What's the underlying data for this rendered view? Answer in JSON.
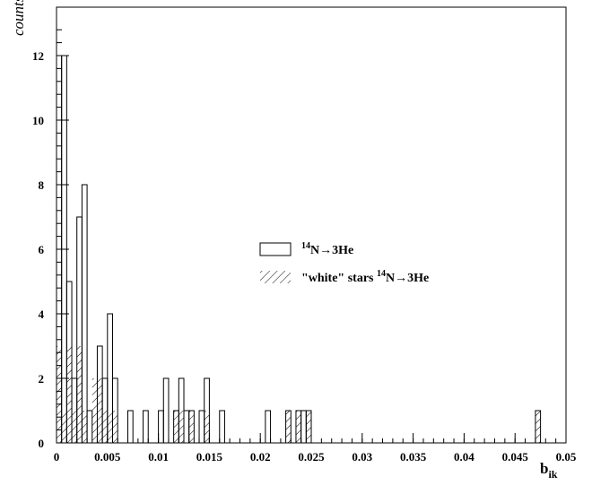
{
  "chart_data": {
    "type": "histogram",
    "xlabel": "b",
    "xlabel_sub": "ik",
    "ylabel": "counts",
    "xlim": [
      0,
      0.05
    ],
    "ylim": [
      0,
      13.5
    ],
    "bin_width": 0.0005,
    "x_ticks": [
      {
        "value": 0,
        "label": "0"
      },
      {
        "value": 0.005,
        "label": "0.005"
      },
      {
        "value": 0.01,
        "label": "0.01"
      },
      {
        "value": 0.015,
        "label": "0.015"
      },
      {
        "value": 0.02,
        "label": "0.02"
      },
      {
        "value": 0.025,
        "label": "0.025"
      },
      {
        "value": 0.03,
        "label": "0.03"
      },
      {
        "value": 0.035,
        "label": "0.035"
      },
      {
        "value": 0.04,
        "label": "0.04"
      },
      {
        "value": 0.045,
        "label": "0.045"
      },
      {
        "value": 0.05,
        "label": "0.05"
      }
    ],
    "y_ticks": [
      {
        "value": 0,
        "label": "0"
      },
      {
        "value": 2,
        "label": "2"
      },
      {
        "value": 4,
        "label": "4"
      },
      {
        "value": 6,
        "label": "6"
      },
      {
        "value": 8,
        "label": "8"
      },
      {
        "value": 10,
        "label": "10"
      },
      {
        "value": 12,
        "label": "12"
      }
    ],
    "grid": false,
    "legend_position": "center-right",
    "series": [
      {
        "name_pre": "",
        "name_sup": "14",
        "name_post": "N→3He",
        "style": "open",
        "bins": [
          {
            "x": 0.0,
            "count": 12
          },
          {
            "x": 0.0005,
            "count": 12
          },
          {
            "x": 0.001,
            "count": 5
          },
          {
            "x": 0.0015,
            "count": 2
          },
          {
            "x": 0.002,
            "count": 7
          },
          {
            "x": 0.0025,
            "count": 8
          },
          {
            "x": 0.003,
            "count": 1
          },
          {
            "x": 0.0035,
            "count": 0
          },
          {
            "x": 0.004,
            "count": 3
          },
          {
            "x": 0.0045,
            "count": 2
          },
          {
            "x": 0.005,
            "count": 4
          },
          {
            "x": 0.0055,
            "count": 2
          },
          {
            "x": 0.006,
            "count": 0
          },
          {
            "x": 0.0065,
            "count": 0
          },
          {
            "x": 0.007,
            "count": 1
          },
          {
            "x": 0.0075,
            "count": 0
          },
          {
            "x": 0.008,
            "count": 0
          },
          {
            "x": 0.0085,
            "count": 1
          },
          {
            "x": 0.009,
            "count": 0
          },
          {
            "x": 0.0095,
            "count": 0
          },
          {
            "x": 0.01,
            "count": 1
          },
          {
            "x": 0.0105,
            "count": 2
          },
          {
            "x": 0.011,
            "count": 0
          },
          {
            "x": 0.0115,
            "count": 1
          },
          {
            "x": 0.012,
            "count": 2
          },
          {
            "x": 0.0125,
            "count": 1
          },
          {
            "x": 0.013,
            "count": 1
          },
          {
            "x": 0.0135,
            "count": 0
          },
          {
            "x": 0.014,
            "count": 1
          },
          {
            "x": 0.0145,
            "count": 2
          },
          {
            "x": 0.015,
            "count": 0
          },
          {
            "x": 0.0155,
            "count": 0
          },
          {
            "x": 0.016,
            "count": 1
          },
          {
            "x": 0.0205,
            "count": 1
          },
          {
            "x": 0.0225,
            "count": 1
          },
          {
            "x": 0.023,
            "count": 0
          },
          {
            "x": 0.0235,
            "count": 1
          },
          {
            "x": 0.024,
            "count": 1
          },
          {
            "x": 0.0245,
            "count": 1
          },
          {
            "x": 0.047,
            "count": 1
          }
        ]
      },
      {
        "name_pre": "\"white\" stars ",
        "name_sup": "14",
        "name_post": "N→3He",
        "style": "hatched",
        "bins": [
          {
            "x": 0.0,
            "count": 3
          },
          {
            "x": 0.0005,
            "count": 1
          },
          {
            "x": 0.001,
            "count": 3
          },
          {
            "x": 0.0015,
            "count": 1
          },
          {
            "x": 0.002,
            "count": 3
          },
          {
            "x": 0.0025,
            "count": 1
          },
          {
            "x": 0.003,
            "count": 0
          },
          {
            "x": 0.0035,
            "count": 2
          },
          {
            "x": 0.004,
            "count": 2
          },
          {
            "x": 0.0045,
            "count": 1
          },
          {
            "x": 0.005,
            "count": 1
          },
          {
            "x": 0.0055,
            "count": 1
          },
          {
            "x": 0.0115,
            "count": 1
          },
          {
            "x": 0.012,
            "count": 1
          },
          {
            "x": 0.013,
            "count": 1
          },
          {
            "x": 0.0145,
            "count": 1
          },
          {
            "x": 0.0225,
            "count": 1
          },
          {
            "x": 0.0235,
            "count": 1
          },
          {
            "x": 0.0245,
            "count": 1
          },
          {
            "x": 0.047,
            "count": 1
          }
        ]
      }
    ]
  }
}
